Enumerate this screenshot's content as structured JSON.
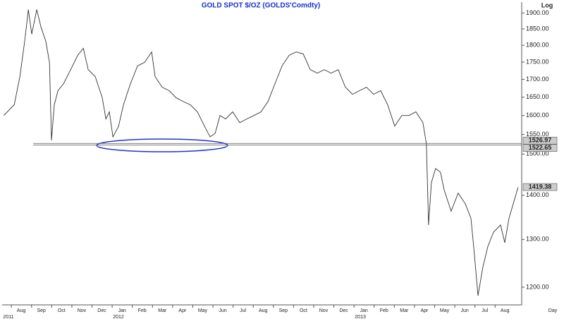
{
  "chart_data": {
    "type": "line",
    "title": "GOLD  SPOT  $/OZ  (GOLDS'Comdty)",
    "y_axis_label": "Log",
    "x_axis_label": "Day",
    "log_scale": true,
    "color": "#333333",
    "ylim": [
      1165,
      1935
    ],
    "yticks": [
      {
        "value": 1900,
        "label": "1900.00"
      },
      {
        "value": 1850,
        "label": "1850.00"
      },
      {
        "value": 1800,
        "label": "1800.00"
      },
      {
        "value": 1750,
        "label": "1750.00"
      },
      {
        "value": 1700,
        "label": "1700.00"
      },
      {
        "value": 1650,
        "label": "1650.00"
      },
      {
        "value": 1600,
        "label": "1600.00"
      },
      {
        "value": 1550,
        "label": "1550.00"
      },
      {
        "value": 1500,
        "label": "1500.00"
      },
      {
        "value": 1400,
        "label": "1400.00"
      },
      {
        "value": 1300,
        "label": "1300.00"
      },
      {
        "value": 1200,
        "label": "1200.00"
      }
    ],
    "xlim": [
      0.05,
      25.83
    ],
    "xticks": [
      {
        "value": 1,
        "label": "Aug"
      },
      {
        "value": 2,
        "label": "Sep"
      },
      {
        "value": 3,
        "label": "Oct"
      },
      {
        "value": 4,
        "label": "Nov"
      },
      {
        "value": 5,
        "label": "Dec"
      },
      {
        "value": 6,
        "label": "Jan"
      },
      {
        "value": 7,
        "label": "Feb"
      },
      {
        "value": 8,
        "label": "Mar"
      },
      {
        "value": 9,
        "label": "Apr"
      },
      {
        "value": 10,
        "label": "May"
      },
      {
        "value": 11,
        "label": "Jun"
      },
      {
        "value": 12,
        "label": "Jul"
      },
      {
        "value": 13,
        "label": "Aug"
      },
      {
        "value": 14,
        "label": "Sep"
      },
      {
        "value": 15,
        "label": "Oct"
      },
      {
        "value": 16,
        "label": "Nov"
      },
      {
        "value": 17,
        "label": "Dec"
      },
      {
        "value": 18,
        "label": "Jan"
      },
      {
        "value": 19,
        "label": "Feb"
      },
      {
        "value": 20,
        "label": "Mar"
      },
      {
        "value": 21,
        "label": "Apr"
      },
      {
        "value": 22,
        "label": "May"
      },
      {
        "value": 23,
        "label": "Jun"
      },
      {
        "value": 24,
        "label": "Jul"
      },
      {
        "value": 25,
        "label": "Aug"
      }
    ],
    "year_labels": [
      {
        "value": 0.1,
        "label": "2011"
      },
      {
        "value": 5.55,
        "label": "2012"
      },
      {
        "value": 17.55,
        "label": "2013"
      }
    ],
    "x": [
      0.13,
      0.65,
      0.93,
      1.17,
      1.35,
      1.52,
      1.77,
      1.98,
      2.22,
      2.4,
      2.5,
      2.64,
      2.82,
      3.1,
      3.45,
      3.8,
      4.08,
      4.32,
      4.67,
      5.02,
      5.2,
      5.37,
      5.55,
      5.83,
      6.07,
      6.42,
      6.77,
      7.12,
      7.47,
      7.64,
      7.99,
      8.34,
      8.69,
      9.04,
      9.39,
      9.74,
      10.09,
      10.37,
      10.62,
      10.86,
      11.14,
      11.49,
      11.84,
      12.19,
      12.54,
      12.89,
      13.24,
      13.59,
      13.94,
      14.29,
      14.64,
      14.99,
      15.34,
      15.69,
      16.03,
      16.38,
      16.73,
      17.08,
      17.43,
      17.78,
      18.13,
      18.48,
      18.83,
      19.18,
      19.53,
      19.88,
      20.23,
      20.58,
      20.93,
      21.1,
      21.21,
      21.35,
      21.56,
      21.8,
      21.98,
      22.33,
      22.68,
      23.03,
      23.31,
      23.48,
      23.66,
      23.9,
      24.15,
      24.43,
      24.78,
      24.99,
      25.2,
      25.41,
      25.65
    ],
    "values": [
      1600,
      1629,
      1708,
      1812,
      1911,
      1834,
      1911,
      1855,
      1812,
      1749,
      1535,
      1629,
      1668,
      1688,
      1728,
      1770,
      1791,
      1728,
      1708,
      1648,
      1591,
      1610,
      1544,
      1572,
      1629,
      1688,
      1739,
      1749,
      1780,
      1708,
      1678,
      1668,
      1648,
      1638,
      1629,
      1610,
      1572,
      1544,
      1553,
      1600,
      1591,
      1610,
      1581,
      1591,
      1600,
      1610,
      1638,
      1688,
      1739,
      1770,
      1780,
      1774,
      1728,
      1718,
      1728,
      1718,
      1728,
      1678,
      1658,
      1668,
      1678,
      1658,
      1668,
      1629,
      1572,
      1600,
      1600,
      1610,
      1581,
      1526,
      1332,
      1430,
      1464,
      1455,
      1413,
      1363,
      1405,
      1380,
      1347,
      1270,
      1183,
      1240,
      1285,
      1316,
      1332,
      1293,
      1347,
      1380,
      1419
    ],
    "reference_lines": [
      1526.97,
      1522.65
    ],
    "last_price": 1419.38
  }
}
